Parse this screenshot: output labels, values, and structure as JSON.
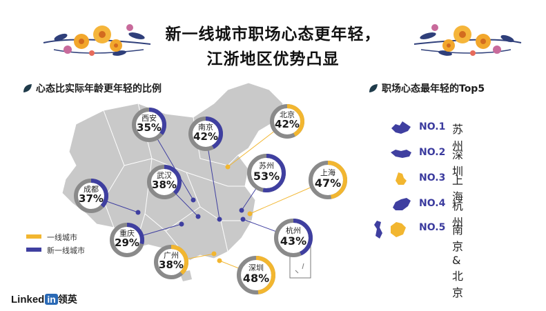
{
  "title": {
    "line1": "新一线城市职场心态更年轻，",
    "line2": "江浙地区优势凸显"
  },
  "left_heading": "心态比实际年龄更年轻的比例",
  "right_heading": "职场心态最年轻的Top5",
  "legend": [
    {
      "label": "一线城市",
      "color": "#f2b630"
    },
    {
      "label": "新一线城市",
      "color": "#3f3fa0"
    }
  ],
  "cities": [
    {
      "name": "西安",
      "pct": "35%",
      "value": 35,
      "type": "new_tier1"
    },
    {
      "name": "南京",
      "pct": "42%",
      "value": 42,
      "type": "new_tier1"
    },
    {
      "name": "北京",
      "pct": "42%",
      "value": 42,
      "type": "tier1"
    },
    {
      "name": "苏州",
      "pct": "53%",
      "value": 53,
      "type": "new_tier1"
    },
    {
      "name": "上海",
      "pct": "47%",
      "value": 47,
      "type": "tier1"
    },
    {
      "name": "成都",
      "pct": "37%",
      "value": 37,
      "type": "new_tier1"
    },
    {
      "name": "武汉",
      "pct": "38%",
      "value": 38,
      "type": "new_tier1"
    },
    {
      "name": "重庆",
      "pct": "29%",
      "value": 29,
      "type": "new_tier1"
    },
    {
      "name": "杭州",
      "pct": "43%",
      "value": 43,
      "type": "new_tier1"
    },
    {
      "name": "广州",
      "pct": "38%",
      "value": 38,
      "type": "tier1"
    },
    {
      "name": "深圳",
      "pct": "48%",
      "value": 48,
      "type": "tier1"
    }
  ],
  "top5": [
    {
      "rank": "NO.1",
      "city": "苏州"
    },
    {
      "rank": "NO.2",
      "city": "深圳"
    },
    {
      "rank": "NO.3",
      "city": "上海"
    },
    {
      "rank": "NO.4",
      "city": "杭州"
    },
    {
      "rank": "NO.5",
      "city": "南京&北京"
    }
  ],
  "logo": {
    "word": "Linked",
    "in": "in",
    "cn": "领英"
  },
  "colors": {
    "tier1": "#f2b630",
    "new_tier1": "#3f3fa0",
    "ring_bg": "#8a8a8a",
    "map": "#c9c9c9"
  }
}
